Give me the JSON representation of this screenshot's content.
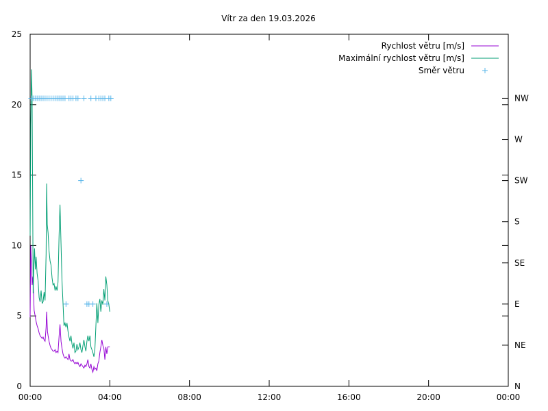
{
  "chart_data": {
    "type": "line",
    "title": "Vítr za den 19.03.2026",
    "x_axis": {
      "min_hours": 0,
      "max_hours": 24,
      "ticks": [
        {
          "label": "00:00",
          "hours": 0
        },
        {
          "label": "04:00",
          "hours": 4
        },
        {
          "label": "08:00",
          "hours": 8
        },
        {
          "label": "12:00",
          "hours": 12
        },
        {
          "label": "16:00",
          "hours": 16
        },
        {
          "label": "20:00",
          "hours": 20
        },
        {
          "label": "00:00",
          "hours": 24
        }
      ]
    },
    "y_axis": {
      "min": 0,
      "max": 25,
      "ticks": [
        {
          "label": "0",
          "value": 0
        },
        {
          "label": "5",
          "value": 5
        },
        {
          "label": "10",
          "value": 10
        },
        {
          "label": "15",
          "value": 15
        },
        {
          "label": "20",
          "value": 20
        },
        {
          "label": "25",
          "value": 25
        }
      ]
    },
    "y2_axis": {
      "ticks": [
        {
          "label": "N",
          "value": 0
        },
        {
          "label": "NE",
          "value": 45
        },
        {
          "label": "E",
          "value": 90
        },
        {
          "label": "SE",
          "value": 135
        },
        {
          "label": "S",
          "value": 180
        },
        {
          "label": "SW",
          "value": 225
        },
        {
          "label": "W",
          "value": 270
        },
        {
          "label": "NW",
          "value": 315
        }
      ],
      "min": 0,
      "max": 385
    },
    "legend_position": "top-right",
    "series": [
      {
        "name": "Rychlost větru [m/s]",
        "style": "line",
        "axis": "y",
        "color": "#9400d3",
        "points": [
          [
            0.0,
            4.9
          ],
          [
            0.03,
            10.0
          ],
          [
            0.07,
            8.5
          ],
          [
            0.1,
            7.2
          ],
          [
            0.13,
            7.8
          ],
          [
            0.17,
            6.7
          ],
          [
            0.2,
            5.4
          ],
          [
            0.25,
            5.0
          ],
          [
            0.3,
            4.6
          ],
          [
            0.35,
            4.3
          ],
          [
            0.4,
            4.1
          ],
          [
            0.45,
            3.8
          ],
          [
            0.5,
            3.6
          ],
          [
            0.55,
            3.5
          ],
          [
            0.6,
            3.4
          ],
          [
            0.65,
            3.5
          ],
          [
            0.7,
            3.3
          ],
          [
            0.75,
            3.2
          ],
          [
            0.8,
            4.2
          ],
          [
            0.83,
            5.3
          ],
          [
            0.87,
            3.9
          ],
          [
            0.9,
            3.6
          ],
          [
            0.95,
            3.2
          ],
          [
            1.0,
            2.9
          ],
          [
            1.05,
            2.7
          ],
          [
            1.1,
            2.6
          ],
          [
            1.15,
            2.5
          ],
          [
            1.2,
            2.5
          ],
          [
            1.25,
            2.6
          ],
          [
            1.3,
            2.4
          ],
          [
            1.35,
            2.5
          ],
          [
            1.4,
            2.4
          ],
          [
            1.45,
            3.5
          ],
          [
            1.5,
            4.4
          ],
          [
            1.55,
            3.2
          ],
          [
            1.6,
            2.7
          ],
          [
            1.65,
            2.3
          ],
          [
            1.7,
            2.1
          ],
          [
            1.75,
            2.0
          ],
          [
            1.8,
            2.1
          ],
          [
            1.85,
            2.0
          ],
          [
            1.9,
            1.9
          ],
          [
            1.95,
            2.3
          ],
          [
            2.0,
            1.9
          ],
          [
            2.05,
            1.8
          ],
          [
            2.1,
            1.8
          ],
          [
            2.15,
            1.9
          ],
          [
            2.2,
            1.7
          ],
          [
            2.25,
            1.6
          ],
          [
            2.3,
            1.7
          ],
          [
            2.35,
            1.6
          ],
          [
            2.4,
            1.7
          ],
          [
            2.45,
            1.5
          ],
          [
            2.5,
            1.4
          ],
          [
            2.55,
            1.6
          ],
          [
            2.6,
            1.5
          ],
          [
            2.65,
            1.4
          ],
          [
            2.7,
            1.3
          ],
          [
            2.75,
            1.5
          ],
          [
            2.8,
            1.4
          ],
          [
            2.85,
            1.6
          ],
          [
            2.9,
            1.9
          ],
          [
            2.95,
            1.4
          ],
          [
            3.0,
            1.3
          ],
          [
            3.05,
            1.6
          ],
          [
            3.1,
            1.2
          ],
          [
            3.15,
            1.0
          ],
          [
            3.2,
            1.4
          ],
          [
            3.25,
            1.2
          ],
          [
            3.3,
            1.3
          ],
          [
            3.35,
            1.1
          ],
          [
            3.4,
            1.6
          ],
          [
            3.45,
            1.8
          ],
          [
            3.5,
            2.4
          ],
          [
            3.55,
            2.8
          ],
          [
            3.6,
            3.3
          ],
          [
            3.65,
            2.9
          ],
          [
            3.7,
            2.7
          ],
          [
            3.75,
            1.9
          ],
          [
            3.8,
            2.8
          ],
          [
            3.85,
            2.3
          ],
          [
            3.9,
            2.8
          ],
          [
            3.95,
            2.8
          ],
          [
            4.0,
            2.8
          ]
        ]
      },
      {
        "name": "Maximální rychlost větru [m/s]",
        "style": "line",
        "axis": "y",
        "color": "#009e73",
        "points": [
          [
            0.0,
            10.7
          ],
          [
            0.03,
            18.6
          ],
          [
            0.07,
            22.5
          ],
          [
            0.1,
            20.4
          ],
          [
            0.13,
            12.4
          ],
          [
            0.15,
            6.6
          ],
          [
            0.18,
            8.3
          ],
          [
            0.22,
            9.8
          ],
          [
            0.26,
            8.3
          ],
          [
            0.3,
            9.2
          ],
          [
            0.35,
            8.0
          ],
          [
            0.4,
            7.5
          ],
          [
            0.45,
            6.3
          ],
          [
            0.5,
            6.0
          ],
          [
            0.55,
            6.8
          ],
          [
            0.6,
            5.9
          ],
          [
            0.65,
            6.0
          ],
          [
            0.7,
            6.7
          ],
          [
            0.75,
            6.1
          ],
          [
            0.8,
            9.4
          ],
          [
            0.83,
            14.4
          ],
          [
            0.86,
            11.5
          ],
          [
            0.9,
            10.9
          ],
          [
            0.95,
            9.6
          ],
          [
            1.0,
            8.9
          ],
          [
            1.05,
            8.6
          ],
          [
            1.1,
            7.7
          ],
          [
            1.15,
            7.2
          ],
          [
            1.2,
            7.3
          ],
          [
            1.25,
            6.8
          ],
          [
            1.3,
            7.1
          ],
          [
            1.35,
            6.8
          ],
          [
            1.4,
            7.4
          ],
          [
            1.45,
            10.6
          ],
          [
            1.5,
            12.9
          ],
          [
            1.55,
            10.1
          ],
          [
            1.6,
            7.5
          ],
          [
            1.65,
            5.9
          ],
          [
            1.7,
            4.3
          ],
          [
            1.75,
            4.5
          ],
          [
            1.8,
            4.2
          ],
          [
            1.85,
            4.5
          ],
          [
            1.9,
            3.9
          ],
          [
            1.95,
            3.5
          ],
          [
            2.0,
            3.2
          ],
          [
            2.05,
            3.6
          ],
          [
            2.1,
            3.0
          ],
          [
            2.15,
            2.7
          ],
          [
            2.2,
            3.1
          ],
          [
            2.25,
            2.4
          ],
          [
            2.3,
            2.5
          ],
          [
            2.35,
            3.0
          ],
          [
            2.4,
            2.6
          ],
          [
            2.45,
            2.8
          ],
          [
            2.5,
            3.1
          ],
          [
            2.55,
            2.6
          ],
          [
            2.6,
            2.4
          ],
          [
            2.65,
            2.9
          ],
          [
            2.7,
            3.3
          ],
          [
            2.75,
            2.8
          ],
          [
            2.8,
            2.5
          ],
          [
            2.85,
            3.2
          ],
          [
            2.9,
            3.6
          ],
          [
            2.95,
            3.2
          ],
          [
            3.0,
            3.6
          ],
          [
            3.05,
            2.8
          ],
          [
            3.1,
            2.6
          ],
          [
            3.15,
            2.4
          ],
          [
            3.2,
            2.1
          ],
          [
            3.25,
            2.6
          ],
          [
            3.3,
            4.3
          ],
          [
            3.35,
            5.9
          ],
          [
            3.4,
            4.5
          ],
          [
            3.45,
            5.8
          ],
          [
            3.5,
            6.2
          ],
          [
            3.55,
            5.3
          ],
          [
            3.6,
            6.1
          ],
          [
            3.65,
            5.8
          ],
          [
            3.7,
            6.9
          ],
          [
            3.75,
            6.1
          ],
          [
            3.8,
            7.8
          ],
          [
            3.85,
            7.2
          ],
          [
            3.9,
            6.1
          ],
          [
            3.95,
            5.8
          ],
          [
            4.0,
            5.3
          ]
        ]
      },
      {
        "name": "Směr větru",
        "style": "points",
        "axis": "y2",
        "color": "#56b4e9",
        "points": [
          [
            0.05,
            315
          ],
          [
            0.15,
            315
          ],
          [
            0.25,
            315
          ],
          [
            0.35,
            315
          ],
          [
            0.45,
            315
          ],
          [
            0.55,
            315
          ],
          [
            0.65,
            315
          ],
          [
            0.75,
            315
          ],
          [
            0.85,
            315
          ],
          [
            0.95,
            315
          ],
          [
            1.05,
            315
          ],
          [
            1.15,
            315
          ],
          [
            1.25,
            315
          ],
          [
            1.35,
            315
          ],
          [
            1.45,
            315
          ],
          [
            1.55,
            315
          ],
          [
            1.65,
            315
          ],
          [
            1.75,
            315
          ],
          [
            1.8,
            90
          ],
          [
            1.95,
            315
          ],
          [
            2.05,
            315
          ],
          [
            2.15,
            315
          ],
          [
            2.3,
            315
          ],
          [
            2.4,
            315
          ],
          [
            2.55,
            225
          ],
          [
            2.7,
            315
          ],
          [
            2.85,
            90
          ],
          [
            2.95,
            90
          ],
          [
            3.05,
            315
          ],
          [
            3.15,
            90
          ],
          [
            3.3,
            315
          ],
          [
            3.45,
            315
          ],
          [
            3.55,
            315
          ],
          [
            3.65,
            315
          ],
          [
            3.75,
            315
          ],
          [
            3.85,
            90
          ],
          [
            3.95,
            315
          ],
          [
            4.05,
            315
          ]
        ]
      }
    ]
  }
}
